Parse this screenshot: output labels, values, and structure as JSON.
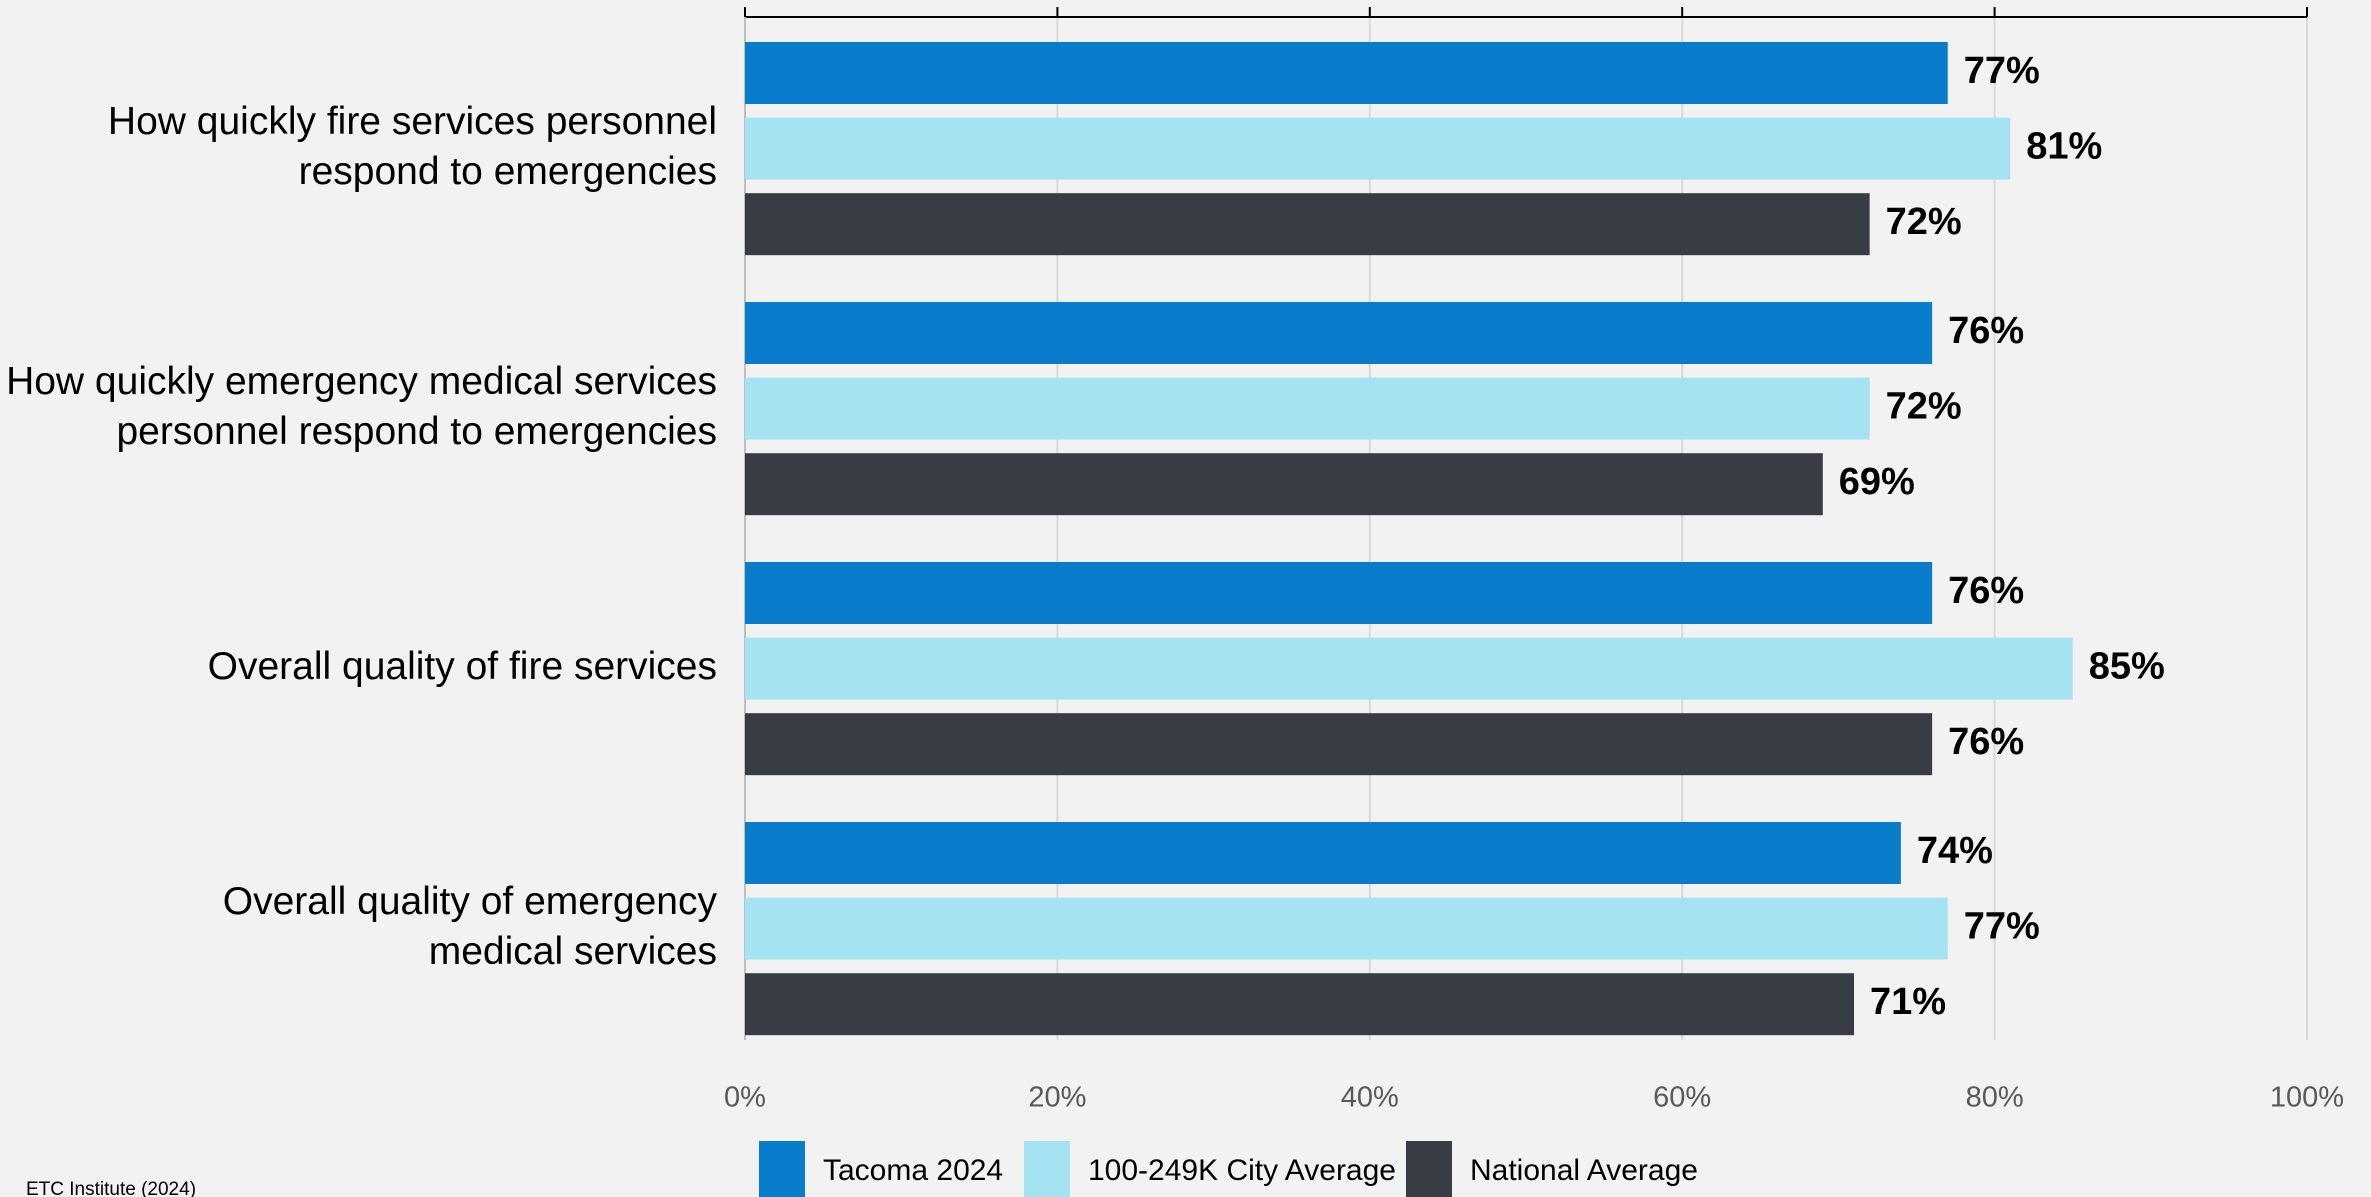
{
  "chart_data": {
    "type": "hbar",
    "categories": [
      [
        "How quickly fire services personnel",
        "respond to emergencies"
      ],
      [
        "How quickly emergency medical services",
        "personnel respond to emergencies"
      ],
      [
        "Overall quality of fire services"
      ],
      [
        "Overall quality of emergency",
        "medical services"
      ]
    ],
    "series": [
      {
        "name": "Tacoma 2024",
        "color": "#0a7ccc",
        "values": [
          77,
          76,
          76,
          74
        ],
        "value_labels": [
          "77%",
          "76%",
          "76%",
          "74%"
        ]
      },
      {
        "name": "100-249K City Average",
        "color": "#a6e3f2",
        "values": [
          81,
          72,
          85,
          77
        ],
        "value_labels": [
          "81%",
          "72%",
          "85%",
          "77%"
        ]
      },
      {
        "name": "National Average",
        "color": "#383c44",
        "values": [
          72,
          69,
          76,
          71
        ],
        "value_labels": [
          "72%",
          "69%",
          "76%",
          "71%"
        ]
      }
    ],
    "xlim": [
      0,
      100
    ],
    "xticks": [
      {
        "value": 0,
        "label": "0%"
      },
      {
        "value": 20,
        "label": "20%"
      },
      {
        "value": 40,
        "label": "40%"
      },
      {
        "value": 60,
        "label": "60%"
      },
      {
        "value": 80,
        "label": "80%"
      },
      {
        "value": 100,
        "label": "100%"
      }
    ],
    "grid": true,
    "legend": "bottom",
    "source": "ETC Institute (2024)"
  }
}
